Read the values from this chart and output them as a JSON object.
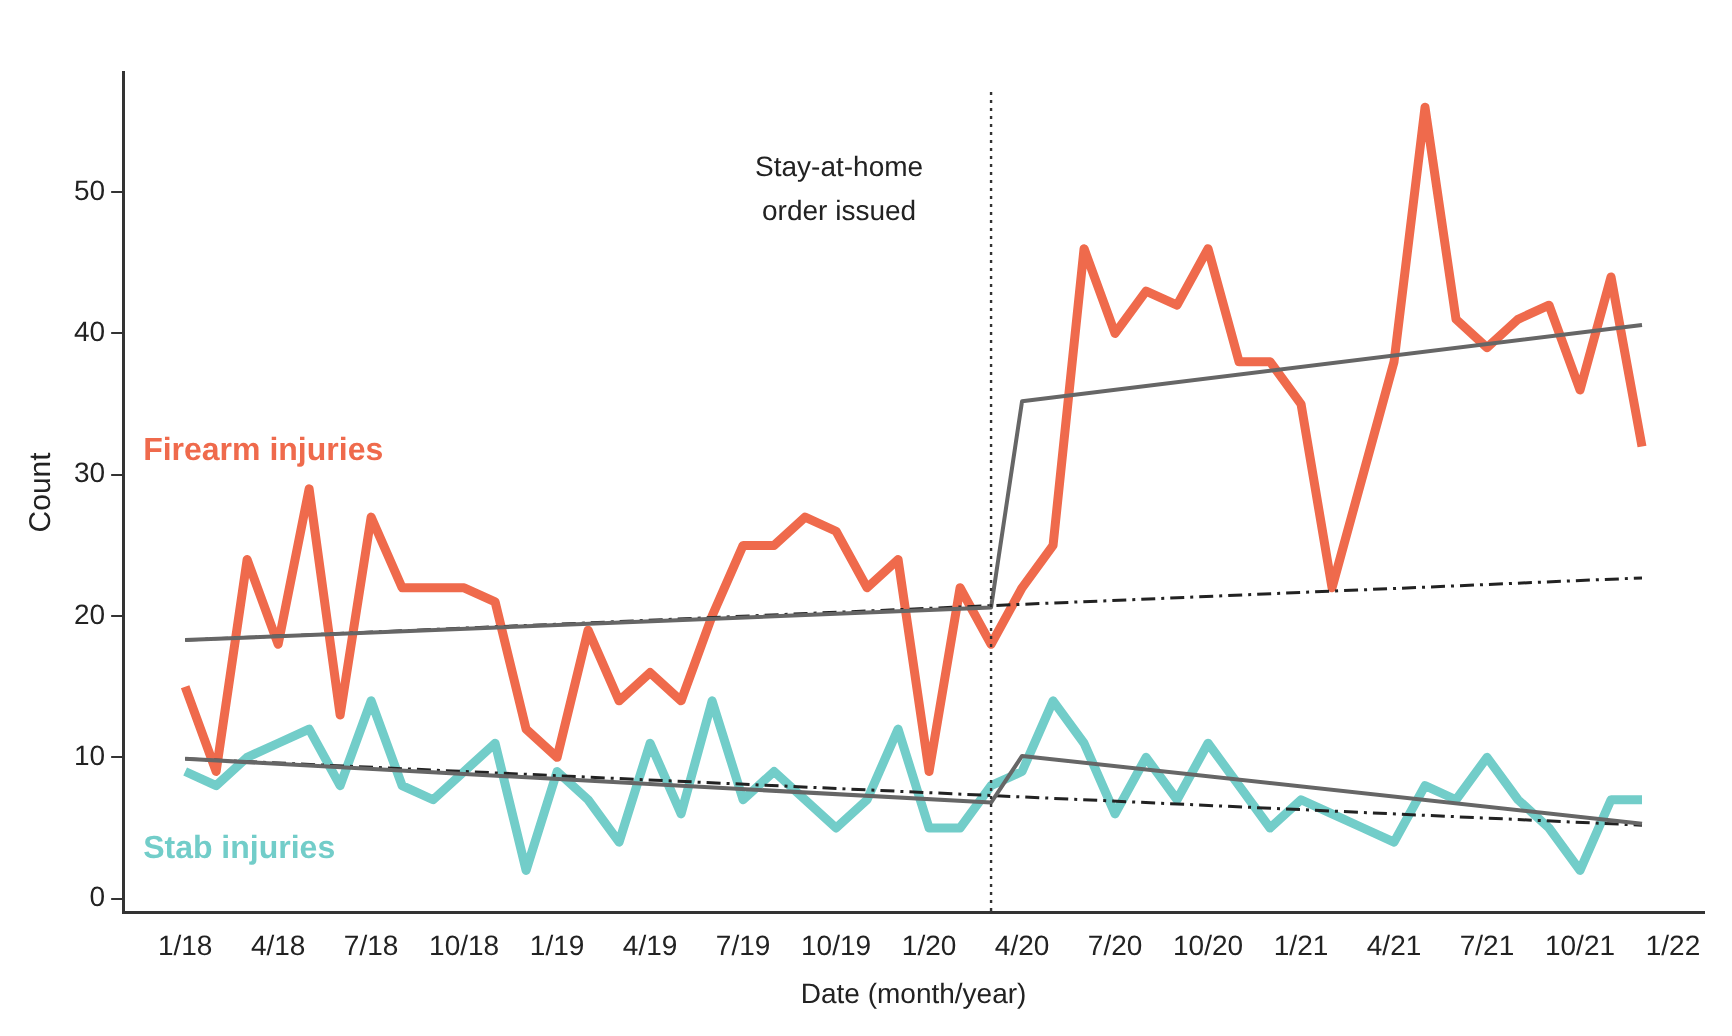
{
  "chart_data": {
    "type": "line",
    "xlabel": "Date (month/year)",
    "ylabel": "Count",
    "x": [
      "2018-01",
      "2018-02",
      "2018-03",
      "2018-04",
      "2018-05",
      "2018-06",
      "2018-07",
      "2018-08",
      "2018-09",
      "2018-10",
      "2018-11",
      "2018-12",
      "2019-01",
      "2019-02",
      "2019-03",
      "2019-04",
      "2019-05",
      "2019-06",
      "2019-07",
      "2019-08",
      "2019-09",
      "2019-10",
      "2019-11",
      "2019-12",
      "2020-01",
      "2020-02",
      "2020-03",
      "2020-04",
      "2020-05",
      "2020-06",
      "2020-07",
      "2020-08",
      "2020-09",
      "2020-10",
      "2020-11",
      "2020-12",
      "2021-01",
      "2021-02",
      "2021-03",
      "2021-04",
      "2021-05",
      "2021-06",
      "2021-07",
      "2021-08",
      "2021-09",
      "2021-10",
      "2021-11",
      "2021-12"
    ],
    "series": [
      {
        "name": "Firearm injuries",
        "color": "#ef6a4c",
        "values": [
          15,
          9,
          24,
          18,
          29,
          13,
          27,
          22,
          22,
          22,
          21,
          12,
          10,
          19,
          14,
          16,
          14,
          20,
          25,
          25,
          27,
          26,
          22,
          24,
          9,
          22,
          18,
          22,
          25,
          46,
          40,
          43,
          42,
          46,
          38,
          38,
          35,
          22,
          30,
          38,
          56,
          41,
          39,
          41,
          42,
          36,
          44,
          32
        ]
      },
      {
        "name": "Stab injuries",
        "color": "#72cdc9",
        "values": [
          9,
          8,
          10,
          11,
          12,
          8,
          14,
          8,
          7,
          9,
          11,
          2,
          9,
          7,
          4,
          11,
          6,
          14,
          7,
          9,
          7,
          5,
          7,
          12,
          5,
          5,
          8,
          9,
          14,
          11,
          6,
          10,
          7,
          11,
          8,
          5,
          7,
          6,
          5,
          4,
          8,
          7,
          10,
          7,
          5,
          2,
          7,
          7
        ]
      },
      {
        "type": "line",
        "color": "#666666",
        "line_style": "solid",
        "x": [
          "2018-01",
          "2020-03",
          "2020-04",
          "2021-12"
        ],
        "values": [
          18.3,
          20.6,
          35.2,
          40.6
        ]
      },
      {
        "type": "line",
        "color": "#222222",
        "line_style": "dashed",
        "x": [
          "2018-01",
          "2021-12"
        ],
        "values": [
          18.3,
          22.7
        ]
      },
      {
        "type": "line",
        "color": "#666666",
        "line_style": "solid",
        "x": [
          "2018-01",
          "2020-03",
          "2020-04",
          "2021-12"
        ],
        "values": [
          9.9,
          6.8,
          10.1,
          5.3
        ]
      },
      {
        "type": "line",
        "color": "#222222",
        "line_style": "dashed",
        "x": [
          "2018-01",
          "2021-12"
        ],
        "values": [
          9.9,
          5.2
        ]
      }
    ],
    "xlim": [
      "2017-11",
      "2022-02"
    ],
    "xticks": [
      {
        "value": "2018-01",
        "label": "1/18"
      },
      {
        "value": "2018-04",
        "label": "4/18"
      },
      {
        "value": "2018-07",
        "label": "7/18"
      },
      {
        "value": "2018-10",
        "label": "10/18"
      },
      {
        "value": "2019-01",
        "label": "1/19"
      },
      {
        "value": "2019-04",
        "label": "4/19"
      },
      {
        "value": "2019-07",
        "label": "7/19"
      },
      {
        "value": "2019-10",
        "label": "10/19"
      },
      {
        "value": "2020-01",
        "label": "1/20"
      },
      {
        "value": "2020-04",
        "label": "4/20"
      },
      {
        "value": "2020-07",
        "label": "7/20"
      },
      {
        "value": "2020-10",
        "label": "10/20"
      },
      {
        "value": "2021-01",
        "label": "1/21"
      },
      {
        "value": "2021-04",
        "label": "4/21"
      },
      {
        "value": "2021-07",
        "label": "7/21"
      },
      {
        "value": "2021-10",
        "label": "10/21"
      },
      {
        "value": "2022-01",
        "label": "1/22"
      }
    ],
    "ylim": [
      -1,
      58.5
    ],
    "yticks": [
      0,
      10,
      20,
      30,
      40,
      50
    ],
    "ref_lines": [
      {
        "axis": "x",
        "value": "2020-03",
        "label": "Stay-at-home order issued",
        "color": "#333333",
        "line_style": "dotted"
      }
    ],
    "grid": false,
    "legend": false,
    "marker": "none"
  }
}
